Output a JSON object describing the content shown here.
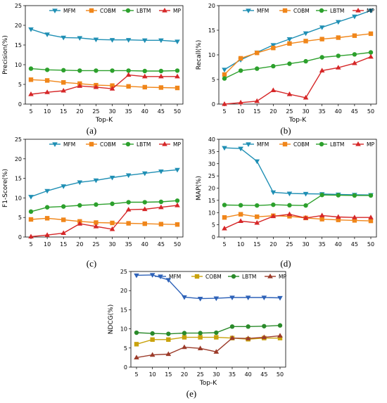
{
  "chart_data": [
    {
      "type": "line",
      "label": "(a)",
      "ylabel": "Precision(%)",
      "xlabel": "Top-K",
      "x": [
        5,
        10,
        15,
        20,
        25,
        30,
        35,
        40,
        45,
        50
      ],
      "ylim": [
        0,
        25
      ],
      "yticks": [
        0,
        5,
        10,
        15,
        20,
        25
      ],
      "legend": "top",
      "grid": false,
      "series": [
        {
          "name": "MFM",
          "values": [
            19.0,
            17.7,
            16.9,
            16.8,
            16.4,
            16.3,
            16.3,
            16.2,
            16.2,
            15.9
          ]
        },
        {
          "name": "COBM",
          "values": [
            6.2,
            6.0,
            5.5,
            5.2,
            4.8,
            4.7,
            4.5,
            4.3,
            4.2,
            4.1
          ]
        },
        {
          "name": "LBTM",
          "values": [
            9.0,
            8.7,
            8.6,
            8.5,
            8.5,
            8.5,
            8.5,
            8.4,
            8.4,
            8.5
          ]
        },
        {
          "name": "MP",
          "values": [
            2.5,
            3.0,
            3.4,
            4.6,
            4.3,
            3.9,
            7.4,
            7.0,
            7.0,
            7.0
          ]
        }
      ]
    },
    {
      "type": "line",
      "label": "(b)",
      "ylabel": "Recall(%)",
      "xlabel": "Top-K",
      "x": [
        5,
        10,
        15,
        20,
        25,
        30,
        35,
        40,
        45,
        50
      ],
      "ylim": [
        0,
        20
      ],
      "yticks": [
        0,
        5,
        10,
        15,
        20
      ],
      "legend": "top",
      "grid": false,
      "series": [
        {
          "name": "MFM",
          "values": [
            7.0,
            9.0,
            10.5,
            12.0,
            13.2,
            14.4,
            15.6,
            16.7,
            17.8,
            19.0
          ]
        },
        {
          "name": "COBM",
          "values": [
            6.0,
            9.3,
            10.4,
            11.4,
            12.3,
            12.8,
            13.2,
            13.5,
            13.9,
            14.3
          ]
        },
        {
          "name": "LBTM",
          "values": [
            5.2,
            6.8,
            7.2,
            7.7,
            8.2,
            8.7,
            9.5,
            9.8,
            10.1,
            10.5
          ]
        },
        {
          "name": "MP",
          "values": [
            0.0,
            0.3,
            0.6,
            2.8,
            2.0,
            1.3,
            6.8,
            7.4,
            8.3,
            9.6
          ]
        }
      ]
    },
    {
      "type": "line",
      "label": "(c)",
      "ylabel": "F1-Score(%)",
      "xlabel": "",
      "x": [
        5,
        10,
        15,
        20,
        25,
        30,
        35,
        40,
        45,
        50
      ],
      "ylim": [
        0,
        25
      ],
      "yticks": [
        0,
        5,
        10,
        15,
        20,
        25
      ],
      "legend": "top",
      "grid": false,
      "series": [
        {
          "name": "MFM",
          "values": [
            10.3,
            11.8,
            13.0,
            14.0,
            14.5,
            15.2,
            15.8,
            16.3,
            16.8,
            17.2
          ]
        },
        {
          "name": "COBM",
          "values": [
            4.5,
            4.8,
            4.4,
            4.0,
            3.7,
            3.6,
            3.5,
            3.4,
            3.3,
            3.2
          ]
        },
        {
          "name": "LBTM",
          "values": [
            6.5,
            7.6,
            7.8,
            8.1,
            8.3,
            8.5,
            8.9,
            8.9,
            9.0,
            9.3
          ]
        },
        {
          "name": "MP",
          "values": [
            0.1,
            0.5,
            1.0,
            3.4,
            2.7,
            2.0,
            7.0,
            7.1,
            7.6,
            8.1
          ]
        }
      ]
    },
    {
      "type": "line",
      "label": "(d)",
      "ylabel": "MAP(%)",
      "xlabel": "",
      "x": [
        5,
        10,
        15,
        20,
        25,
        30,
        35,
        40,
        45,
        50
      ],
      "ylim": [
        0,
        40
      ],
      "yticks": [
        0,
        5,
        10,
        15,
        20,
        25,
        30,
        35,
        40
      ],
      "legend": "top",
      "grid": false,
      "series": [
        {
          "name": "MFM",
          "values": [
            36.5,
            36.2,
            31.0,
            18.3,
            17.8,
            17.7,
            17.6,
            17.4,
            17.3,
            17.2
          ]
        },
        {
          "name": "COBM",
          "values": [
            8.0,
            9.3,
            8.3,
            8.7,
            8.5,
            7.8,
            7.3,
            7.0,
            6.8,
            6.6
          ]
        },
        {
          "name": "LBTM",
          "values": [
            13.1,
            13.0,
            12.9,
            13.2,
            13.0,
            12.9,
            17.2,
            17.1,
            17.0,
            17.0
          ]
        },
        {
          "name": "MP",
          "values": [
            3.5,
            6.5,
            5.8,
            8.5,
            9.3,
            7.8,
            8.8,
            8.2,
            8.0,
            8.0
          ]
        }
      ]
    },
    {
      "type": "line",
      "label": "(e)",
      "ylabel": "NDCG(%)",
      "xlabel": "Top-K",
      "x": [
        5,
        10,
        15,
        20,
        25,
        30,
        35,
        40,
        45,
        50
      ],
      "ylim": [
        0,
        25
      ],
      "yticks": [
        0,
        5,
        10,
        15,
        20,
        25
      ],
      "legend": "top",
      "grid": false,
      "series": [
        {
          "name": "MFM",
          "values": [
            24.0,
            24.1,
            22.8,
            18.3,
            17.9,
            18.0,
            18.2,
            18.2,
            18.2,
            18.1
          ]
        },
        {
          "name": "COBM",
          "values": [
            6.0,
            7.2,
            7.2,
            7.8,
            7.8,
            7.8,
            7.6,
            7.3,
            7.6,
            7.6
          ]
        },
        {
          "name": "LBTM",
          "values": [
            9.0,
            8.8,
            8.7,
            8.9,
            8.9,
            9.0,
            10.6,
            10.6,
            10.7,
            10.9
          ]
        },
        {
          "name": "MP",
          "values": [
            2.5,
            3.2,
            3.4,
            5.2,
            4.9,
            4.0,
            7.6,
            7.5,
            7.8,
            8.2
          ]
        }
      ]
    }
  ],
  "styles_ae": [
    {
      "color": "#1f8fb4",
      "marker": "triangle-down"
    },
    {
      "color": "#f0861a",
      "marker": "square"
    },
    {
      "color": "#2ca02c",
      "marker": "circle"
    },
    {
      "color": "#d62728",
      "marker": "triangle-up"
    }
  ],
  "styles_e": [
    {
      "color": "#2e62b8",
      "marker": "triangle-down"
    },
    {
      "color": "#c9a20c",
      "marker": "square"
    },
    {
      "color": "#2a8a2a",
      "marker": "circle"
    },
    {
      "color": "#9c3b2a",
      "marker": "triangle-up"
    }
  ]
}
